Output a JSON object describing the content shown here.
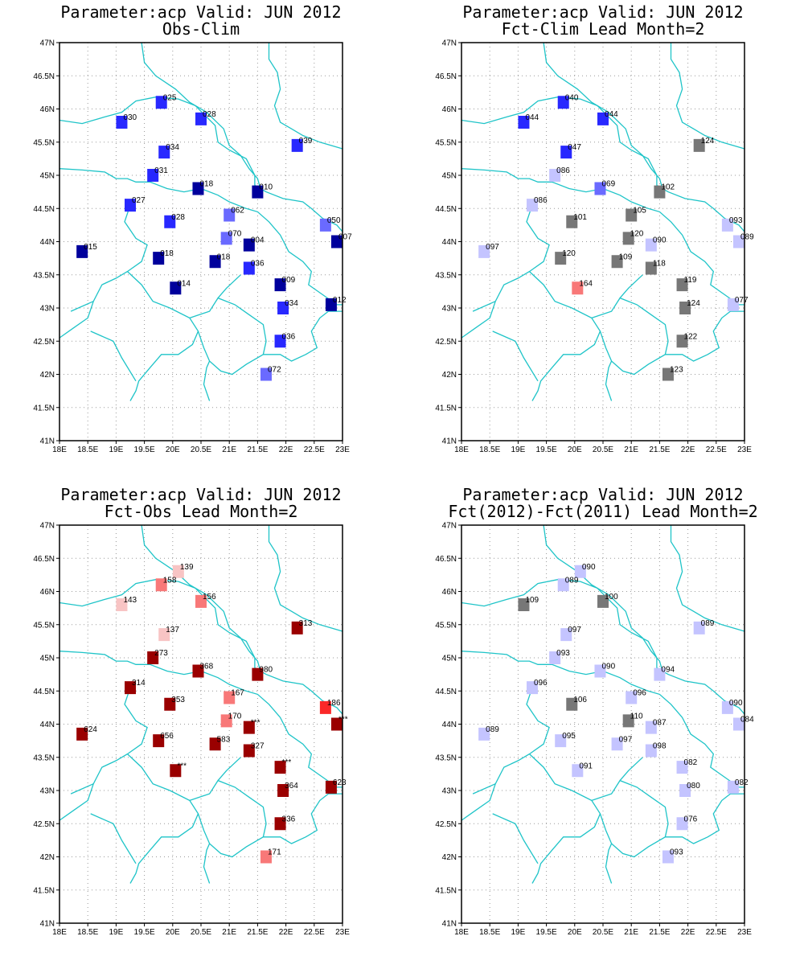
{
  "map": {
    "lon_range": [
      18,
      23
    ],
    "lat_range": [
      41,
      47
    ],
    "lon_ticks": [
      "18E",
      "18.5E",
      "19E",
      "19.5E",
      "20E",
      "20.5E",
      "21E",
      "21.5E",
      "22E",
      "22.5E",
      "23E"
    ],
    "lat_ticks": [
      "41N",
      "41.5N",
      "42N",
      "42.5N",
      "43N",
      "43.5N",
      "44N",
      "44.5N",
      "45N",
      "45.5N",
      "46N",
      "46.5N",
      "47N"
    ],
    "coast_color": "#1fc4c8",
    "grid": true
  },
  "stations": [
    {
      "lon": 19.8,
      "lat": 46.1
    },
    {
      "lon": 19.1,
      "lat": 45.8
    },
    {
      "lon": 20.5,
      "lat": 45.85
    },
    {
      "lon": 19.85,
      "lat": 45.35
    },
    {
      "lon": 22.2,
      "lat": 45.45
    },
    {
      "lon": 19.65,
      "lat": 45.0
    },
    {
      "lon": 20.45,
      "lat": 44.8
    },
    {
      "lon": 21.5,
      "lat": 44.75
    },
    {
      "lon": 19.25,
      "lat": 44.55
    },
    {
      "lon": 19.95,
      "lat": 44.3
    },
    {
      "lon": 21.0,
      "lat": 44.4
    },
    {
      "lon": 22.7,
      "lat": 44.25
    },
    {
      "lon": 20.95,
      "lat": 44.05
    },
    {
      "lon": 21.35,
      "lat": 43.95
    },
    {
      "lon": 18.4,
      "lat": 43.85
    },
    {
      "lon": 22.9,
      "lat": 44.0
    },
    {
      "lon": 19.75,
      "lat": 43.75
    },
    {
      "lon": 20.75,
      "lat": 43.7
    },
    {
      "lon": 21.35,
      "lat": 43.6
    },
    {
      "lon": 21.9,
      "lat": 43.35
    },
    {
      "lon": 20.05,
      "lat": 43.3
    },
    {
      "lon": 21.95,
      "lat": 43.0
    },
    {
      "lon": 22.8,
      "lat": 43.05
    },
    {
      "lon": 21.9,
      "lat": 42.5
    },
    {
      "lon": 21.65,
      "lat": 42.0
    },
    {
      "lon": 20.1,
      "lat": 46.3
    }
  ],
  "colors": {
    "dark_blue": "#00009c",
    "blue": "#2828ff",
    "mid_blue": "#6a6aff",
    "light_blue": "#c4c4ff",
    "grey": "#777777",
    "pink": "#f8c4c4",
    "salmon": "#f87878",
    "red": "#fa2828",
    "dark_red": "#9a0000"
  },
  "panels": [
    {
      "title_line1": "Parameter:acp Valid: JUN 2012",
      "title_line2": "Obs-Clim",
      "points": [
        {
          "s": 0,
          "label": "025",
          "c": "blue"
        },
        {
          "s": 1,
          "label": "030",
          "c": "blue"
        },
        {
          "s": 2,
          "label": "028",
          "c": "blue"
        },
        {
          "s": 3,
          "label": "034",
          "c": "blue"
        },
        {
          "s": 4,
          "label": "039",
          "c": "blue"
        },
        {
          "s": 5,
          "label": "031",
          "c": "blue"
        },
        {
          "s": 6,
          "label": "018",
          "c": "dark_blue"
        },
        {
          "s": 7,
          "label": "010",
          "c": "dark_blue"
        },
        {
          "s": 8,
          "label": "027",
          "c": "blue"
        },
        {
          "s": 9,
          "label": "028",
          "c": "blue"
        },
        {
          "s": 10,
          "label": "062",
          "c": "mid_blue"
        },
        {
          "s": 11,
          "label": "050",
          "c": "mid_blue"
        },
        {
          "s": 12,
          "label": "070",
          "c": "mid_blue"
        },
        {
          "s": 13,
          "label": "004",
          "c": "dark_blue"
        },
        {
          "s": 14,
          "label": "015",
          "c": "dark_blue"
        },
        {
          "s": 15,
          "label": "007",
          "c": "dark_blue"
        },
        {
          "s": 16,
          "label": "018",
          "c": "dark_blue"
        },
        {
          "s": 17,
          "label": "018",
          "c": "dark_blue"
        },
        {
          "s": 18,
          "label": "036",
          "c": "blue"
        },
        {
          "s": 19,
          "label": "009",
          "c": "dark_blue"
        },
        {
          "s": 20,
          "label": "014",
          "c": "dark_blue"
        },
        {
          "s": 21,
          "label": "034",
          "c": "blue"
        },
        {
          "s": 22,
          "label": "012",
          "c": "dark_blue"
        },
        {
          "s": 23,
          "label": "036",
          "c": "blue"
        },
        {
          "s": 24,
          "label": "072",
          "c": "mid_blue"
        }
      ]
    },
    {
      "title_line1": "Parameter:acp Valid: JUN 2012",
      "title_line2": "Fct-Clim Lead Month=2",
      "points": [
        {
          "s": 0,
          "label": "040",
          "c": "blue"
        },
        {
          "s": 1,
          "label": "044",
          "c": "blue"
        },
        {
          "s": 2,
          "label": "044",
          "c": "blue"
        },
        {
          "s": 3,
          "label": "047",
          "c": "blue"
        },
        {
          "s": 4,
          "label": "124",
          "c": "grey"
        },
        {
          "s": 5,
          "label": "086",
          "c": "light_blue"
        },
        {
          "s": 6,
          "label": "069",
          "c": "mid_blue"
        },
        {
          "s": 7,
          "label": "102",
          "c": "grey"
        },
        {
          "s": 8,
          "label": "086",
          "c": "light_blue"
        },
        {
          "s": 9,
          "label": "101",
          "c": "grey"
        },
        {
          "s": 10,
          "label": "105",
          "c": "grey"
        },
        {
          "s": 11,
          "label": "093",
          "c": "light_blue"
        },
        {
          "s": 12,
          "label": "120",
          "c": "grey"
        },
        {
          "s": 13,
          "label": "090",
          "c": "light_blue"
        },
        {
          "s": 14,
          "label": "097",
          "c": "light_blue"
        },
        {
          "s": 15,
          "label": "089",
          "c": "light_blue"
        },
        {
          "s": 16,
          "label": "120",
          "c": "grey"
        },
        {
          "s": 17,
          "label": "109",
          "c": "grey"
        },
        {
          "s": 18,
          "label": "118",
          "c": "grey"
        },
        {
          "s": 19,
          "label": "119",
          "c": "grey"
        },
        {
          "s": 20,
          "label": "164",
          "c": "salmon"
        },
        {
          "s": 21,
          "label": "124",
          "c": "grey"
        },
        {
          "s": 22,
          "label": "077",
          "c": "light_blue"
        },
        {
          "s": 23,
          "label": "122",
          "c": "grey"
        },
        {
          "s": 24,
          "label": "123",
          "c": "grey"
        }
      ]
    },
    {
      "title_line1": "Parameter:acp Valid: JUN 2012",
      "title_line2": "Fct-Obs Lead Month=2",
      "points": [
        {
          "s": 25,
          "label": "139",
          "c": "pink"
        },
        {
          "s": 0,
          "label": "158",
          "c": "salmon"
        },
        {
          "s": 1,
          "label": "143",
          "c": "pink"
        },
        {
          "s": 2,
          "label": "156",
          "c": "salmon"
        },
        {
          "s": 3,
          "label": "137",
          "c": "pink"
        },
        {
          "s": 4,
          "label": "313",
          "c": "dark_red"
        },
        {
          "s": 5,
          "label": "273",
          "c": "dark_red"
        },
        {
          "s": 6,
          "label": "368",
          "c": "dark_red"
        },
        {
          "s": 7,
          "label": "980",
          "c": "dark_red"
        },
        {
          "s": 8,
          "label": "314",
          "c": "dark_red"
        },
        {
          "s": 9,
          "label": "353",
          "c": "dark_red"
        },
        {
          "s": 10,
          "label": "167",
          "c": "salmon"
        },
        {
          "s": 11,
          "label": "186",
          "c": "red"
        },
        {
          "s": 12,
          "label": "170",
          "c": "salmon"
        },
        {
          "s": 13,
          "label": "***",
          "c": "dark_red"
        },
        {
          "s": 14,
          "label": "624",
          "c": "dark_red"
        },
        {
          "s": 15,
          "label": "***",
          "c": "dark_red"
        },
        {
          "s": 16,
          "label": "656",
          "c": "dark_red"
        },
        {
          "s": 17,
          "label": "583",
          "c": "dark_red"
        },
        {
          "s": 18,
          "label": "327",
          "c": "dark_red"
        },
        {
          "s": 19,
          "label": "***",
          "c": "dark_red"
        },
        {
          "s": 20,
          "label": "***",
          "c": "dark_red"
        },
        {
          "s": 21,
          "label": "364",
          "c": "dark_red"
        },
        {
          "s": 22,
          "label": "623",
          "c": "dark_red"
        },
        {
          "s": 23,
          "label": "336",
          "c": "dark_red"
        },
        {
          "s": 24,
          "label": "171",
          "c": "salmon"
        }
      ]
    },
    {
      "title_line1": "Parameter:acp Valid: JUN 2012",
      "title_line2": "Fct(2012)-Fct(2011) Lead Month=2",
      "points": [
        {
          "s": 25,
          "label": "090",
          "c": "light_blue"
        },
        {
          "s": 0,
          "label": "089",
          "c": "light_blue"
        },
        {
          "s": 1,
          "label": "109",
          "c": "grey"
        },
        {
          "s": 2,
          "label": "100",
          "c": "grey"
        },
        {
          "s": 3,
          "label": "097",
          "c": "light_blue"
        },
        {
          "s": 4,
          "label": "089",
          "c": "light_blue"
        },
        {
          "s": 5,
          "label": "093",
          "c": "light_blue"
        },
        {
          "s": 6,
          "label": "090",
          "c": "light_blue"
        },
        {
          "s": 7,
          "label": "094",
          "c": "light_blue"
        },
        {
          "s": 8,
          "label": "096",
          "c": "light_blue"
        },
        {
          "s": 9,
          "label": "106",
          "c": "grey"
        },
        {
          "s": 10,
          "label": "096",
          "c": "light_blue"
        },
        {
          "s": 11,
          "label": "090",
          "c": "light_blue"
        },
        {
          "s": 12,
          "label": "110",
          "c": "grey"
        },
        {
          "s": 13,
          "label": "087",
          "c": "light_blue"
        },
        {
          "s": 14,
          "label": "089",
          "c": "light_blue"
        },
        {
          "s": 15,
          "label": "084",
          "c": "light_blue"
        },
        {
          "s": 16,
          "label": "095",
          "c": "light_blue"
        },
        {
          "s": 17,
          "label": "097",
          "c": "light_blue"
        },
        {
          "s": 18,
          "label": "098",
          "c": "light_blue"
        },
        {
          "s": 19,
          "label": "082",
          "c": "light_blue"
        },
        {
          "s": 20,
          "label": "091",
          "c": "light_blue"
        },
        {
          "s": 21,
          "label": "080",
          "c": "light_blue"
        },
        {
          "s": 22,
          "label": "082",
          "c": "light_blue"
        },
        {
          "s": 23,
          "label": "076",
          "c": "light_blue"
        },
        {
          "s": 24,
          "label": "093",
          "c": "light_blue"
        }
      ]
    }
  ]
}
